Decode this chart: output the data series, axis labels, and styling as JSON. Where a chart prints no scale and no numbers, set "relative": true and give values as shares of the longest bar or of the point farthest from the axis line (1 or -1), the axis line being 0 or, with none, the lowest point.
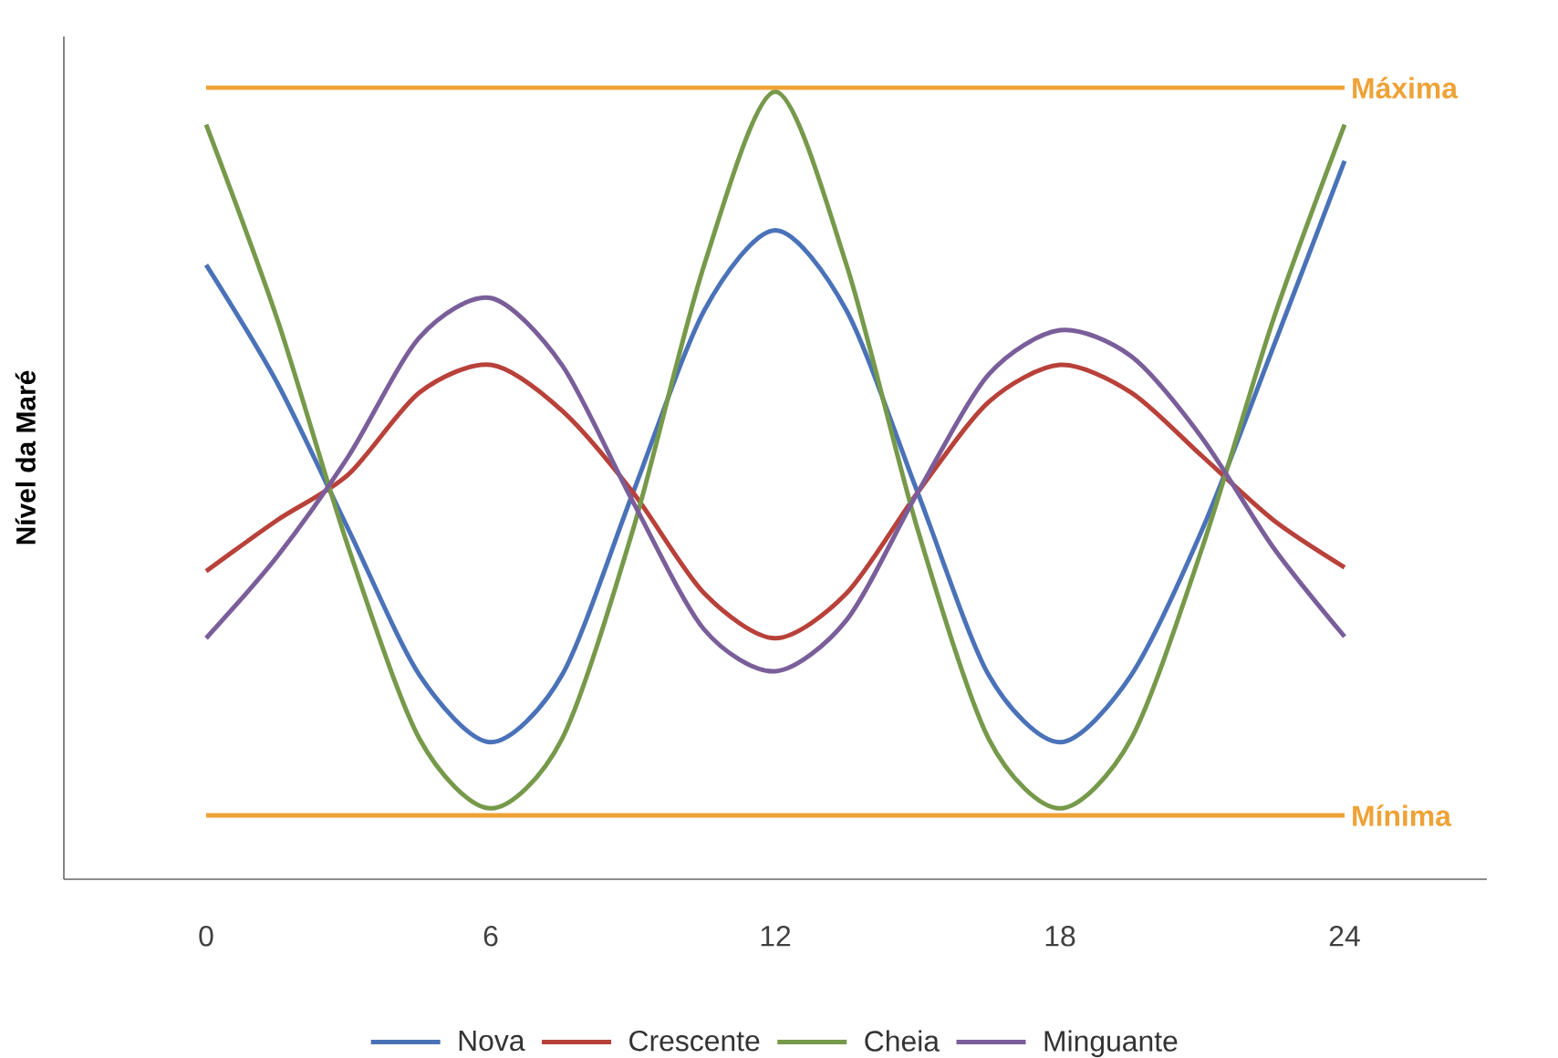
{
  "chart_data": {
    "type": "line",
    "relative": true,
    "ylabel": "Nível da Maré",
    "legend": "bottom",
    "x": [
      0,
      1.5,
      3,
      4.5,
      6,
      7.5,
      9,
      10.5,
      12,
      13.5,
      15,
      16.5,
      18,
      19.5,
      21,
      22.5,
      24
    ],
    "xlim": [
      -3,
      27
    ],
    "xticks": [
      0,
      6,
      12,
      18,
      24
    ],
    "series": [
      {
        "name": "Nova",
        "color": "#4a72b8",
        "values": [
          0.78,
          0.63,
          0.444,
          0.259,
          0.174,
          0.259,
          0.491,
          0.722,
          0.824,
          0.722,
          0.491,
          0.259,
          0.174,
          0.259,
          0.444,
          0.676,
          0.912
        ]
      },
      {
        "name": "Crescente",
        "color": "#b8413a",
        "values": [
          0.391,
          0.456,
          0.514,
          0.618,
          0.653,
          0.595,
          0.491,
          0.363,
          0.306,
          0.363,
          0.491,
          0.606,
          0.653,
          0.618,
          0.537,
          0.456,
          0.396
        ]
      },
      {
        "name": "Cheia",
        "color": "#76994a",
        "values": [
          0.958,
          0.711,
          0.421,
          0.178,
          0.09,
          0.178,
          0.444,
          0.78,
          1.0,
          0.78,
          0.444,
          0.178,
          0.09,
          0.178,
          0.421,
          0.711,
          0.958
        ]
      },
      {
        "name": "Minguante",
        "color": "#7a5e9a",
        "values": [
          0.306,
          0.41,
          0.537,
          0.688,
          0.738,
          0.653,
          0.479,
          0.317,
          0.264,
          0.329,
          0.491,
          0.641,
          0.697,
          0.664,
          0.56,
          0.421,
          0.308
        ]
      }
    ],
    "ref_lines": [
      {
        "axis": "y",
        "value": 1.005,
        "label": "Máxima",
        "color": "#eea236"
      },
      {
        "axis": "y",
        "value": 0.081,
        "label": "Mínima",
        "color": "#eea236"
      }
    ]
  }
}
